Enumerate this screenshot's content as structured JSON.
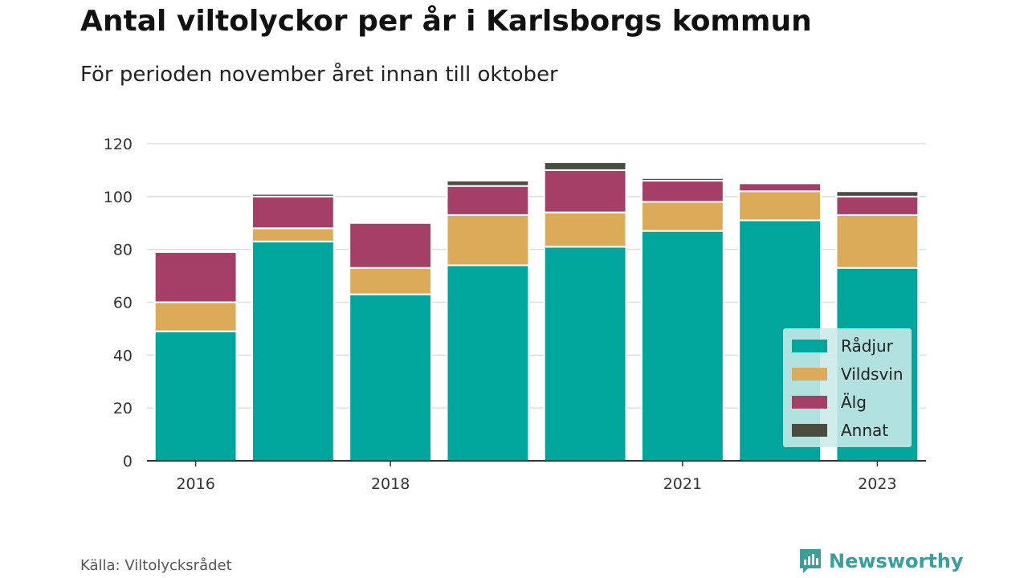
{
  "title": "Antal viltolyckor per år i Karlsborgs kommun",
  "subtitle": "För perioden november året innan till oktober",
  "source": "Källa: Viltolycksrådet",
  "brand": {
    "name": "Newsworthy",
    "icon": "newsworthy-logo-icon",
    "color": "#3a9e9a"
  },
  "chart_data": {
    "type": "bar",
    "stacked": true,
    "categories": [
      "2016",
      "2017",
      "2018",
      "2019",
      "2020",
      "2021",
      "2022",
      "2023"
    ],
    "x_tick_labels": [
      "2016",
      "",
      "2018",
      "",
      "",
      "2021",
      "",
      "2023"
    ],
    "y_ticks": [
      0,
      20,
      40,
      60,
      80,
      100,
      120
    ],
    "ylim": [
      0,
      120
    ],
    "grid": true,
    "legend_position": "bottom-right",
    "series": [
      {
        "name": "Rådjur",
        "color": "#00a59b",
        "values": [
          49,
          83,
          63,
          74,
          81,
          87,
          91,
          73
        ]
      },
      {
        "name": "Vildsvin",
        "color": "#dbab5a",
        "values": [
          11,
          5,
          10,
          19,
          13,
          11,
          11,
          20
        ]
      },
      {
        "name": "Älg",
        "color": "#a53f67",
        "values": [
          19,
          12,
          17,
          11,
          16,
          8,
          3,
          7
        ]
      },
      {
        "name": "Annat",
        "color": "#4a4c40",
        "values": [
          0,
          1,
          0,
          2,
          3,
          1,
          0,
          2
        ]
      }
    ]
  }
}
